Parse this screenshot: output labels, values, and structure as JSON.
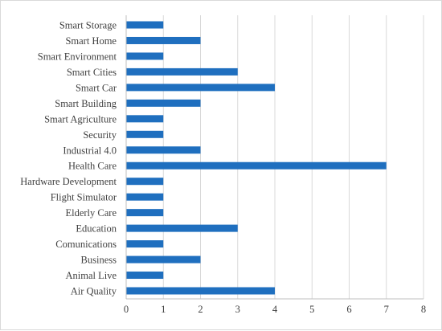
{
  "chart_data": {
    "type": "bar",
    "orientation": "horizontal",
    "categories": [
      "Smart Storage",
      "Smart Home",
      "Smart Environment",
      "Smart Cities",
      "Smart Car",
      "Smart Building",
      "Smart Agriculture",
      "Security",
      "Industrial 4.0",
      "Health Care",
      "Hardware Development",
      "Flight Simulator",
      "Elderly Care",
      "Education",
      "Comunications",
      "Business",
      "Animal Live",
      "Air Quality"
    ],
    "values": [
      1,
      2,
      1,
      3,
      4,
      2,
      1,
      1,
      2,
      7,
      1,
      1,
      1,
      3,
      1,
      2,
      1,
      4
    ],
    "xlim": [
      0,
      8
    ],
    "xticks": [
      "0",
      "1",
      "2",
      "3",
      "4",
      "5",
      "6",
      "7",
      "8"
    ],
    "grid": "vertical",
    "bar_color": "#1f6fbf"
  }
}
